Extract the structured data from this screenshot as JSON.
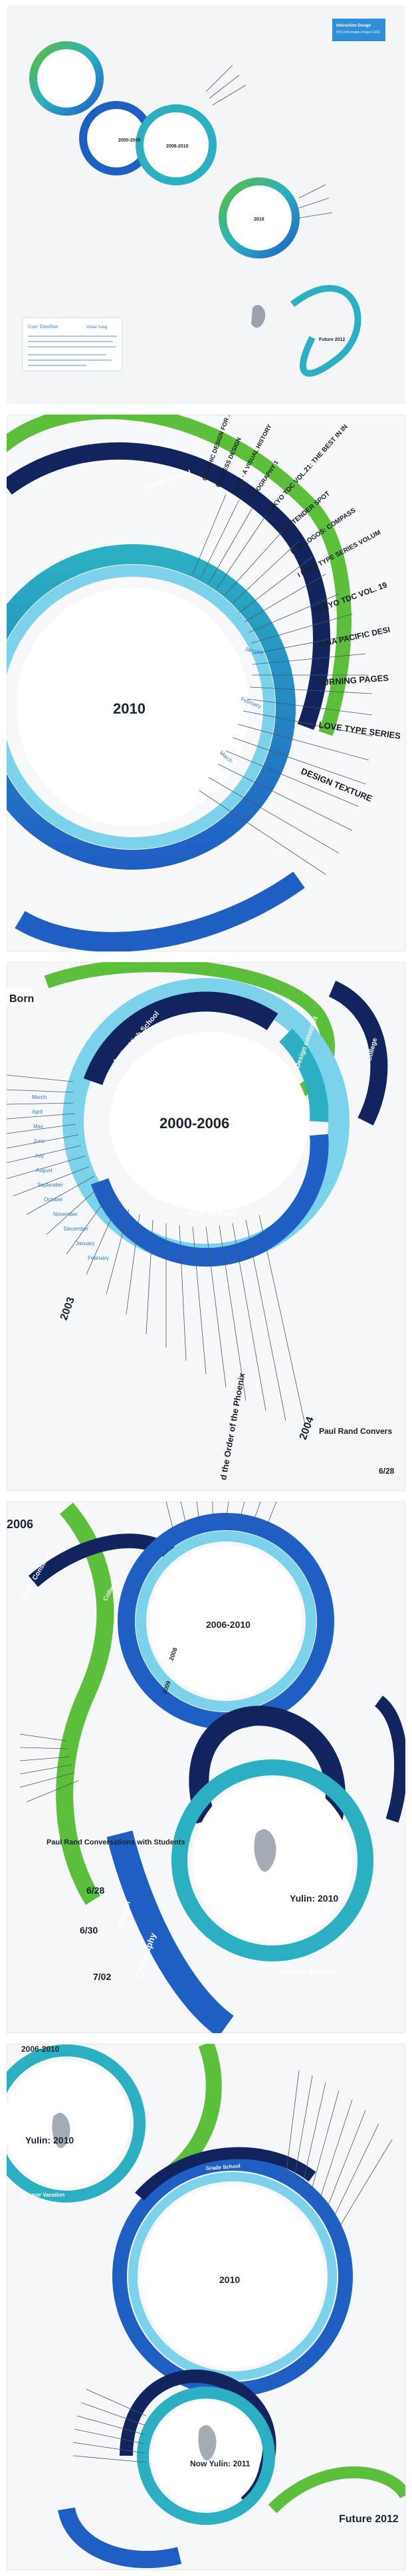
{
  "overview": {
    "title_box": {
      "title": "User Timeline",
      "subtitle": "Vivian Yang"
    },
    "corner_label": [
      "Interaction Design",
      "NYU Information Project 2011"
    ],
    "years": [
      "2000-2006",
      "2006-2010",
      "2010",
      "Future 2012"
    ]
  },
  "detail_2010": {
    "year": "2010",
    "band_label": "Grade School",
    "months": [
      "January",
      "February",
      "March"
    ],
    "entries": [
      "GRAPHIC DESIGN FOR ...",
      "PROCESS DESIGN",
      "TYPE - A VISUAL HISTORY",
      "TYPOGRAPHY 1",
      "TOKYO TDC VOL.21: THE BEST IN IN",
      "THE TENDER SPOT",
      "LOS LOGOS: COMPASS",
      "I LOVE TYPE SERIES VOLUM",
      "TOKYO TDC VOL. 19",
      "ASIA PACIFIC DESI",
      "TURNING PAGES",
      "I LOVE TYPE SERIES",
      "DESIGN TEXTURE"
    ]
  },
  "detail_2000_2006": {
    "year": "2000-2006",
    "bands": [
      "Born",
      "Junior High School",
      "High School",
      "Design construct",
      "College"
    ],
    "months": [
      "March",
      "April",
      "May",
      "June",
      "July",
      "August",
      "September",
      "October",
      "November",
      "December",
      "January",
      "February"
    ],
    "years": [
      "2003",
      "2004"
    ],
    "entries": [
      "d the Order of the Phoenix",
      "Paul Rand  Convers",
      "6/28"
    ]
  },
  "detail_2006_2010": {
    "years": [
      "2006",
      "2006-2010",
      "2008",
      "2009",
      "Yulin: 2010"
    ],
    "bands": [
      "Design Construct",
      "College",
      "Poster",
      "Typography",
      "Summer Vacation"
    ],
    "entries": [
      "Paul Rand   Conversations with Students",
      "6/28",
      "6/30",
      "7/02"
    ]
  },
  "detail_future": {
    "years": [
      "2006-2010",
      "Yulin: 2010",
      "2010",
      "Now Yulin: 2011",
      "Future 2012"
    ],
    "bands": [
      "Grade School",
      "Summer Vacation"
    ]
  },
  "colors": {
    "navy": "#12245e",
    "blue": "#1f5fc4",
    "teal": "#2bb0c2",
    "light": "#7cd2ea",
    "green": "#5bbf3a"
  }
}
